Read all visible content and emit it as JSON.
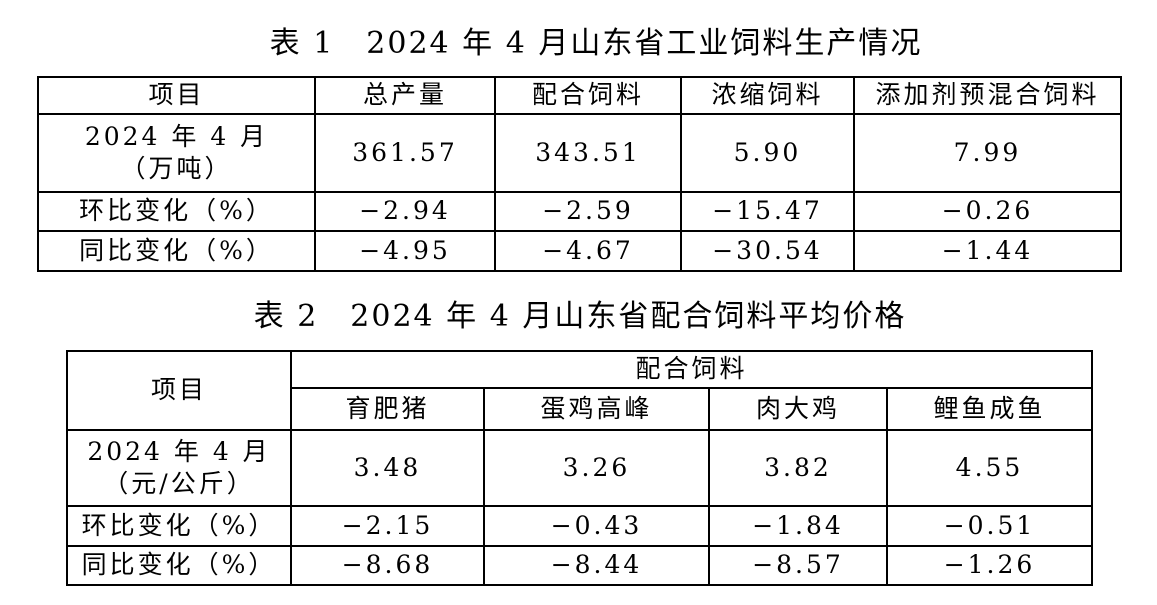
{
  "table1": {
    "title": "表 1　2024 年 4 月山东省工业饲料生产情况",
    "header": [
      "项目",
      "总产量",
      "配合饲料",
      "浓缩饲料",
      "添加剂预混合饲料"
    ],
    "rows": [
      {
        "label": [
          "2024 年 4 月",
          "（万吨）"
        ],
        "cells": [
          "361.57",
          "343.51",
          "5.90",
          "7.99"
        ]
      },
      {
        "label": [
          "环比变化（%）"
        ],
        "cells": [
          "−2.94",
          "−2.59",
          "−15.47",
          "−0.26"
        ]
      },
      {
        "label": [
          "同比变化（%）"
        ],
        "cells": [
          "−4.95",
          "−4.67",
          "−30.54",
          "−1.44"
        ]
      }
    ]
  },
  "table2": {
    "title": "表 2　2024 年 4 月山东省配合饲料平均价格",
    "corner": "项目",
    "group": "配合饲料",
    "header": [
      "育肥猪",
      "蛋鸡高峰",
      "肉大鸡",
      "鲤鱼成鱼"
    ],
    "rows": [
      {
        "label": [
          "2024 年 4 月",
          "（元/公斤）"
        ],
        "cells": [
          "3.48",
          "3.26",
          "3.82",
          "4.55"
        ]
      },
      {
        "label": [
          "环比变化（%）"
        ],
        "cells": [
          "−2.15",
          "−0.43",
          "−1.84",
          "−0.51"
        ]
      },
      {
        "label": [
          "同比变化（%）"
        ],
        "cells": [
          "−8.68",
          "−8.44",
          "−8.57",
          "−1.26"
        ]
      }
    ]
  }
}
